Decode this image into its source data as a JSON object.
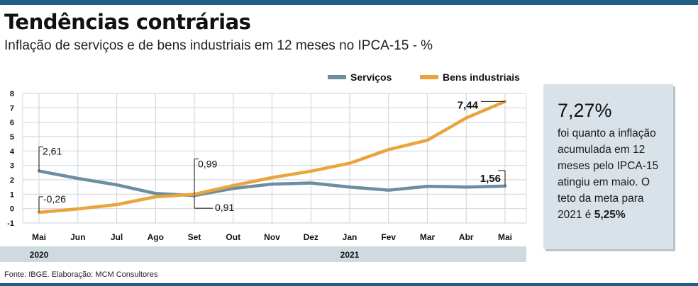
{
  "header": {
    "title": "Tendências contrárias",
    "subtitle": "Inflação de serviços e de bens industriais em 12 meses no IPCA-15 - %"
  },
  "footer": {
    "source": "Fonte: IBGE. Elaboração: MCM Consultores"
  },
  "infobox": {
    "value": "7,27%",
    "text_main": "foi quanto a inflação acumulada em 12 meses pelo IPCA-15 atingiu em maio.",
    "text_goal_prefix": "O teto da meta para 2021 é ",
    "text_goal_value": "5,25%"
  },
  "colors": {
    "servicos": "#6c8ea0",
    "bens": "#e9a43d",
    "grid": "#d3d9de",
    "yearband": "#cfd9e0"
  },
  "chart_data": {
    "type": "line",
    "categories": [
      "Mai",
      "Jun",
      "Jul",
      "Ago",
      "Set",
      "Out",
      "Nov",
      "Dez",
      "Jan",
      "Fev",
      "Mar",
      "Abr",
      "Mai"
    ],
    "years": [
      {
        "label": "2020",
        "start_index": 0
      },
      {
        "label": "2021",
        "start_index": 8
      }
    ],
    "series": [
      {
        "name": "Serviços",
        "values": [
          2.61,
          2.1,
          1.65,
          1.05,
          0.91,
          1.4,
          1.7,
          1.78,
          1.5,
          1.28,
          1.55,
          1.5,
          1.56
        ]
      },
      {
        "name": "Bens industriais",
        "values": [
          -0.26,
          -0.02,
          0.28,
          0.82,
          0.99,
          1.6,
          2.15,
          2.6,
          3.15,
          4.1,
          4.75,
          6.3,
          7.44
        ]
      }
    ],
    "annotations": [
      {
        "series": 0,
        "index": 0,
        "text": "2,61"
      },
      {
        "series": 1,
        "index": 0,
        "text": "-0,26"
      },
      {
        "series": 1,
        "index": 4,
        "text": "0,99"
      },
      {
        "series": 0,
        "index": 4,
        "text": "0,91"
      },
      {
        "series": 1,
        "index": 12,
        "text": "7,44"
      },
      {
        "series": 0,
        "index": 12,
        "text": "1,56"
      }
    ],
    "yticks": [
      8,
      7,
      6,
      5,
      4,
      3,
      2,
      1,
      0,
      -1
    ],
    "ylim": [
      -1,
      8
    ],
    "legend_position": "top-right",
    "grid": true
  }
}
